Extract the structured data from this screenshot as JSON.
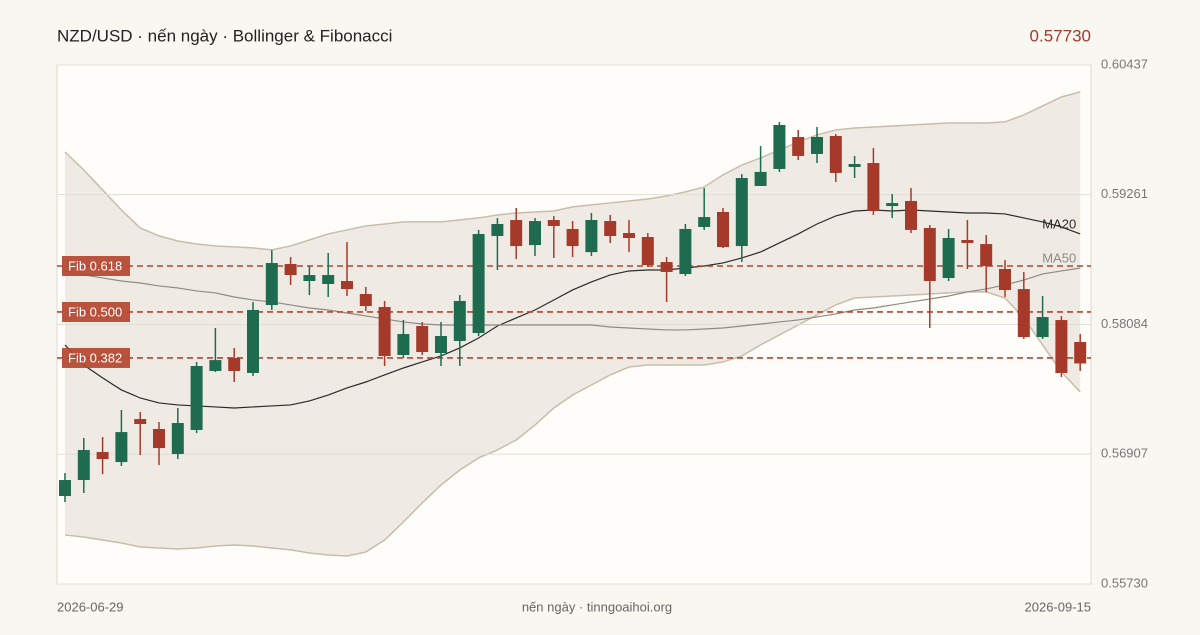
{
  "header": {
    "title": "NZD/USD · nến ngày · Bollinger & Fibonacci",
    "last_price": {
      "value": 0.5773,
      "label": "0.57730"
    }
  },
  "chart_data": {
    "type": "candlestick",
    "x_start": "2026-06-29",
    "x_end": "2026-09-15",
    "footer": "nến ngày · tinngoaihoi.org",
    "open": [
      0.56528,
      0.56673,
      0.56927,
      0.56836,
      0.57226,
      0.57136,
      0.56909,
      0.57127,
      0.57662,
      0.5778,
      0.57644,
      0.5826,
      0.58632,
      0.58478,
      0.58451,
      0.58478,
      0.5836,
      0.58242,
      0.57807,
      0.5807,
      0.57825,
      0.57934,
      0.58006,
      0.58886,
      0.59031,
      0.58804,
      0.59031,
      0.5895,
      0.5874,
      0.59022,
      0.58913,
      0.58877,
      0.5865,
      0.58541,
      0.58968,
      0.59104,
      0.58795,
      0.5934,
      0.59494,
      0.59784,
      0.5963,
      0.59793,
      0.59512,
      0.59548,
      0.59158,
      0.59204,
      0.58959,
      0.58505,
      0.5885,
      0.58813,
      0.58587,
      0.58405,
      0.5797,
      0.58124,
      0.57925
    ],
    "high": [
      0.56737,
      0.57054,
      0.57063,
      0.57308,
      0.5729,
      0.57199,
      0.57326,
      0.57743,
      0.58052,
      0.5787,
      0.58287,
      0.58759,
      0.58696,
      0.58614,
      0.58732,
      0.58832,
      0.58424,
      0.58297,
      0.58124,
      0.58106,
      0.58106,
      0.58351,
      0.58941,
      0.59049,
      0.5914,
      0.59049,
      0.59067,
      0.59022,
      0.59095,
      0.59077,
      0.59031,
      0.58913,
      0.58696,
      0.58995,
      0.59321,
      0.5914,
      0.59448,
      0.59702,
      0.5992,
      0.59848,
      0.59875,
      0.59811,
      0.59612,
      0.59684,
      0.59267,
      0.59321,
      0.58986,
      0.5895,
      0.59031,
      0.58895,
      0.58668,
      0.5856,
      0.58342,
      0.5816,
      0.57997
    ],
    "low": [
      0.56473,
      0.56555,
      0.56727,
      0.568,
      0.569,
      0.56809,
      0.56863,
      0.57099,
      0.57653,
      0.57562,
      0.57616,
      0.58215,
      0.58442,
      0.58351,
      0.58333,
      0.58342,
      0.58206,
      0.57707,
      0.5778,
      0.57807,
      0.57707,
      0.57707,
      0.57979,
      0.58578,
      0.58677,
      0.58705,
      0.58687,
      0.58696,
      0.58705,
      0.58823,
      0.5874,
      0.58605,
      0.58287,
      0.58523,
      0.58941,
      0.58777,
      0.5865,
      0.5934,
      0.59467,
      0.59575,
      0.59548,
      0.59376,
      0.59412,
      0.59077,
      0.59049,
      0.58913,
      0.58052,
      0.58478,
      0.58587,
      0.58378,
      0.58333,
      0.57952,
      0.57952,
      0.57607,
      0.57662
    ],
    "close": [
      0.56673,
      0.56945,
      0.56863,
      0.57108,
      0.57181,
      0.56963,
      0.5719,
      0.57707,
      0.57761,
      0.57662,
      0.58215,
      0.58641,
      0.58532,
      0.58532,
      0.58532,
      0.58405,
      0.58251,
      0.57798,
      0.57997,
      0.57834,
      0.57979,
      0.58297,
      0.58904,
      0.58995,
      0.58795,
      0.59022,
      0.58977,
      0.58795,
      0.59031,
      0.58886,
      0.58868,
      0.58623,
      0.5856,
      0.5895,
      0.59058,
      0.58786,
      0.59412,
      0.59467,
      0.59893,
      0.59612,
      0.59784,
      0.59458,
      0.59539,
      0.59113,
      0.59185,
      0.58941,
      0.58478,
      0.58868,
      0.58823,
      0.58614,
      0.58396,
      0.5797,
      0.58151,
      0.57644,
      0.5773
    ],
    "up_color": "#1f6b4f",
    "down_color": "#a63a2a",
    "ylim": [
      0.5573,
      0.60437
    ],
    "yticks": [
      {
        "value": 0.5573,
        "label": "0.55730"
      },
      0.56907,
      0.58084,
      0.59261,
      0.60437
    ],
    "grid": true,
    "bollinger": {
      "color": "#c8bdaa",
      "fill": "#efebe4",
      "upper": [
        0.59648,
        0.59485,
        0.59304,
        0.59122,
        0.58959,
        0.58887,
        0.58841,
        0.58814,
        0.58796,
        0.58787,
        0.58778,
        0.5876,
        0.58796,
        0.5885,
        0.58905,
        0.58941,
        0.58977,
        0.58995,
        0.59014,
        0.59014,
        0.59014,
        0.59032,
        0.5905,
        0.59077,
        0.59095,
        0.59104,
        0.59113,
        0.5915,
        0.59168,
        0.59186,
        0.59204,
        0.59222,
        0.59249,
        0.59286,
        0.59331,
        0.5944,
        0.5953,
        0.59594,
        0.59667,
        0.59739,
        0.59803,
        0.59848,
        0.59866,
        0.59875,
        0.59884,
        0.59893,
        0.59902,
        0.59911,
        0.59911,
        0.59911,
        0.59921,
        0.59984,
        0.60066,
        0.60147,
        0.60193
      ],
      "lower": [
        0.56175,
        0.56156,
        0.56129,
        0.56102,
        0.56066,
        0.56057,
        0.56048,
        0.56057,
        0.56075,
        0.56084,
        0.56075,
        0.56057,
        0.56039,
        0.56011,
        0.55993,
        0.55984,
        0.5602,
        0.56129,
        0.56293,
        0.56465,
        0.56628,
        0.56764,
        0.56873,
        0.56946,
        0.57036,
        0.57172,
        0.57326,
        0.57444,
        0.57535,
        0.57626,
        0.57698,
        0.57716,
        0.57716,
        0.57716,
        0.57716,
        0.57744,
        0.57798,
        0.57898,
        0.57989,
        0.58079,
        0.5817,
        0.58261,
        0.58324,
        0.58333,
        0.58342,
        0.58351,
        0.5836,
        0.5837,
        0.58379,
        0.58379,
        0.58324,
        0.58143,
        0.57898,
        0.57653,
        0.57472
      ]
    },
    "series": [
      {
        "name": "MA20",
        "color": "#2b2b2b",
        "values": [
          0.57898,
          0.57716,
          0.57599,
          0.5749,
          0.57417,
          0.57372,
          0.57354,
          0.57345,
          0.57336,
          0.57326,
          0.57336,
          0.57345,
          0.57354,
          0.5739,
          0.57444,
          0.57508,
          0.57562,
          0.57626,
          0.57689,
          0.57744,
          0.57798,
          0.57871,
          0.57961,
          0.5807,
          0.58143,
          0.58215,
          0.58306,
          0.58397,
          0.58469,
          0.58533,
          0.58569,
          0.58578,
          0.58578,
          0.58596,
          0.58614,
          0.58642,
          0.58687,
          0.58741,
          0.58823,
          0.58905,
          0.58995,
          0.59068,
          0.59113,
          0.59122,
          0.59113,
          0.59122,
          0.59113,
          0.59104,
          0.59095,
          0.59095,
          0.59086,
          0.5905,
          0.59014,
          0.58968,
          0.58905
        ]
      },
      {
        "name": "MA50",
        "color": "#8f8a82",
        "values": [
          0.58569,
          0.58533,
          0.58506,
          0.58478,
          0.5846,
          0.58433,
          0.58415,
          0.58388,
          0.5837,
          0.58333,
          0.58306,
          0.58288,
          0.58261,
          0.58233,
          0.58215,
          0.58188,
          0.58161,
          0.58134,
          0.58107,
          0.58088,
          0.58079,
          0.58079,
          0.58079,
          0.58079,
          0.58079,
          0.58079,
          0.58079,
          0.58079,
          0.58079,
          0.58061,
          0.58052,
          0.58043,
          0.58034,
          0.58034,
          0.58043,
          0.58052,
          0.5807,
          0.58088,
          0.58107,
          0.58125,
          0.58152,
          0.58179,
          0.58215,
          0.58233,
          0.58261,
          0.58288,
          0.58315,
          0.58342,
          0.58379,
          0.58406,
          0.58442,
          0.58487,
          0.58542,
          0.58569,
          0.58596
        ]
      }
    ],
    "fib_color": "#b5452f",
    "fib_levels": [
      {
        "label": "Fib 0.618",
        "value": 0.58614
      },
      {
        "label": "Fib 0.500",
        "value": 0.58197
      },
      {
        "label": "Fib 0.382",
        "value": 0.5778
      }
    ]
  }
}
